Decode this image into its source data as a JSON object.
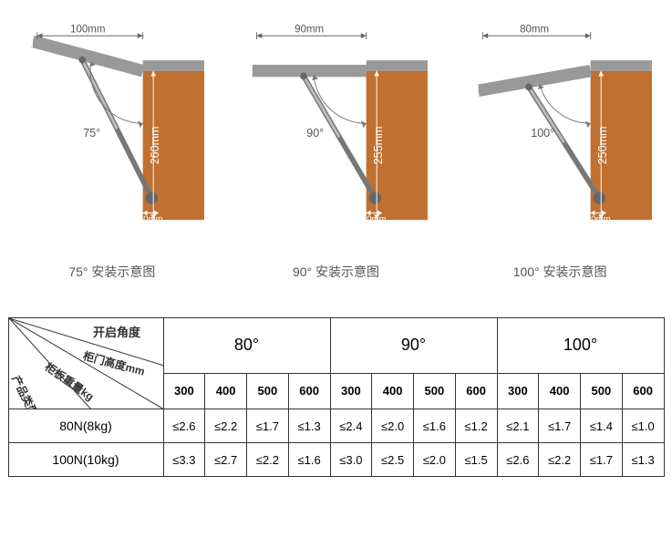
{
  "diagrams": [
    {
      "angle_label": "75°",
      "top_dim": "100mm",
      "side_dim": "260mm",
      "bottom_offset": "10mm",
      "caption": "75° 安装示意图",
      "lid_angle_deg": 15
    },
    {
      "angle_label": "90°",
      "top_dim": "90mm",
      "side_dim": "255mm",
      "bottom_offset": "10mm",
      "caption": "90° 安装示意图",
      "lid_angle_deg": 0
    },
    {
      "angle_label": "100°",
      "top_dim": "80mm",
      "side_dim": "250mm",
      "bottom_offset": "10mm",
      "caption": "100° 安装示意图",
      "lid_angle_deg": -10
    }
  ],
  "colors": {
    "cabinet": "#c07030",
    "lid": "#999999",
    "lid_outline": "#888888",
    "strut": "#777777",
    "bracket": "#666666",
    "arrow": "#666666",
    "dim_text": "#555555",
    "arc": "#777777",
    "table_border": "#333333"
  },
  "table": {
    "header_diag": {
      "top": "开启角度",
      "mid": "柜门高度mm",
      "side": "柜板重量kg",
      "bottom": "产品类型"
    },
    "angle_groups": [
      "80°",
      "90°",
      "100°"
    ],
    "sub_headers": [
      "300",
      "400",
      "500",
      "600",
      "300",
      "400",
      "500",
      "600",
      "300",
      "400",
      "500",
      "600"
    ],
    "rows": [
      {
        "label": "80N(8kg)",
        "vals": [
          "≤2.6",
          "≤2.2",
          "≤1.7",
          "≤1.3",
          "≤2.4",
          "≤2.0",
          "≤1.6",
          "≤1.2",
          "≤2.1",
          "≤1.7",
          "≤1.4",
          "≤1.0"
        ]
      },
      {
        "label": "100N(10kg)",
        "vals": [
          "≤3.3",
          "≤2.7",
          "≤2.2",
          "≤1.6",
          "≤3.0",
          "≤2.5",
          "≤2.0",
          "≤1.5",
          "≤2.6",
          "≤2.2",
          "≤1.7",
          "≤1.3"
        ]
      }
    ]
  }
}
